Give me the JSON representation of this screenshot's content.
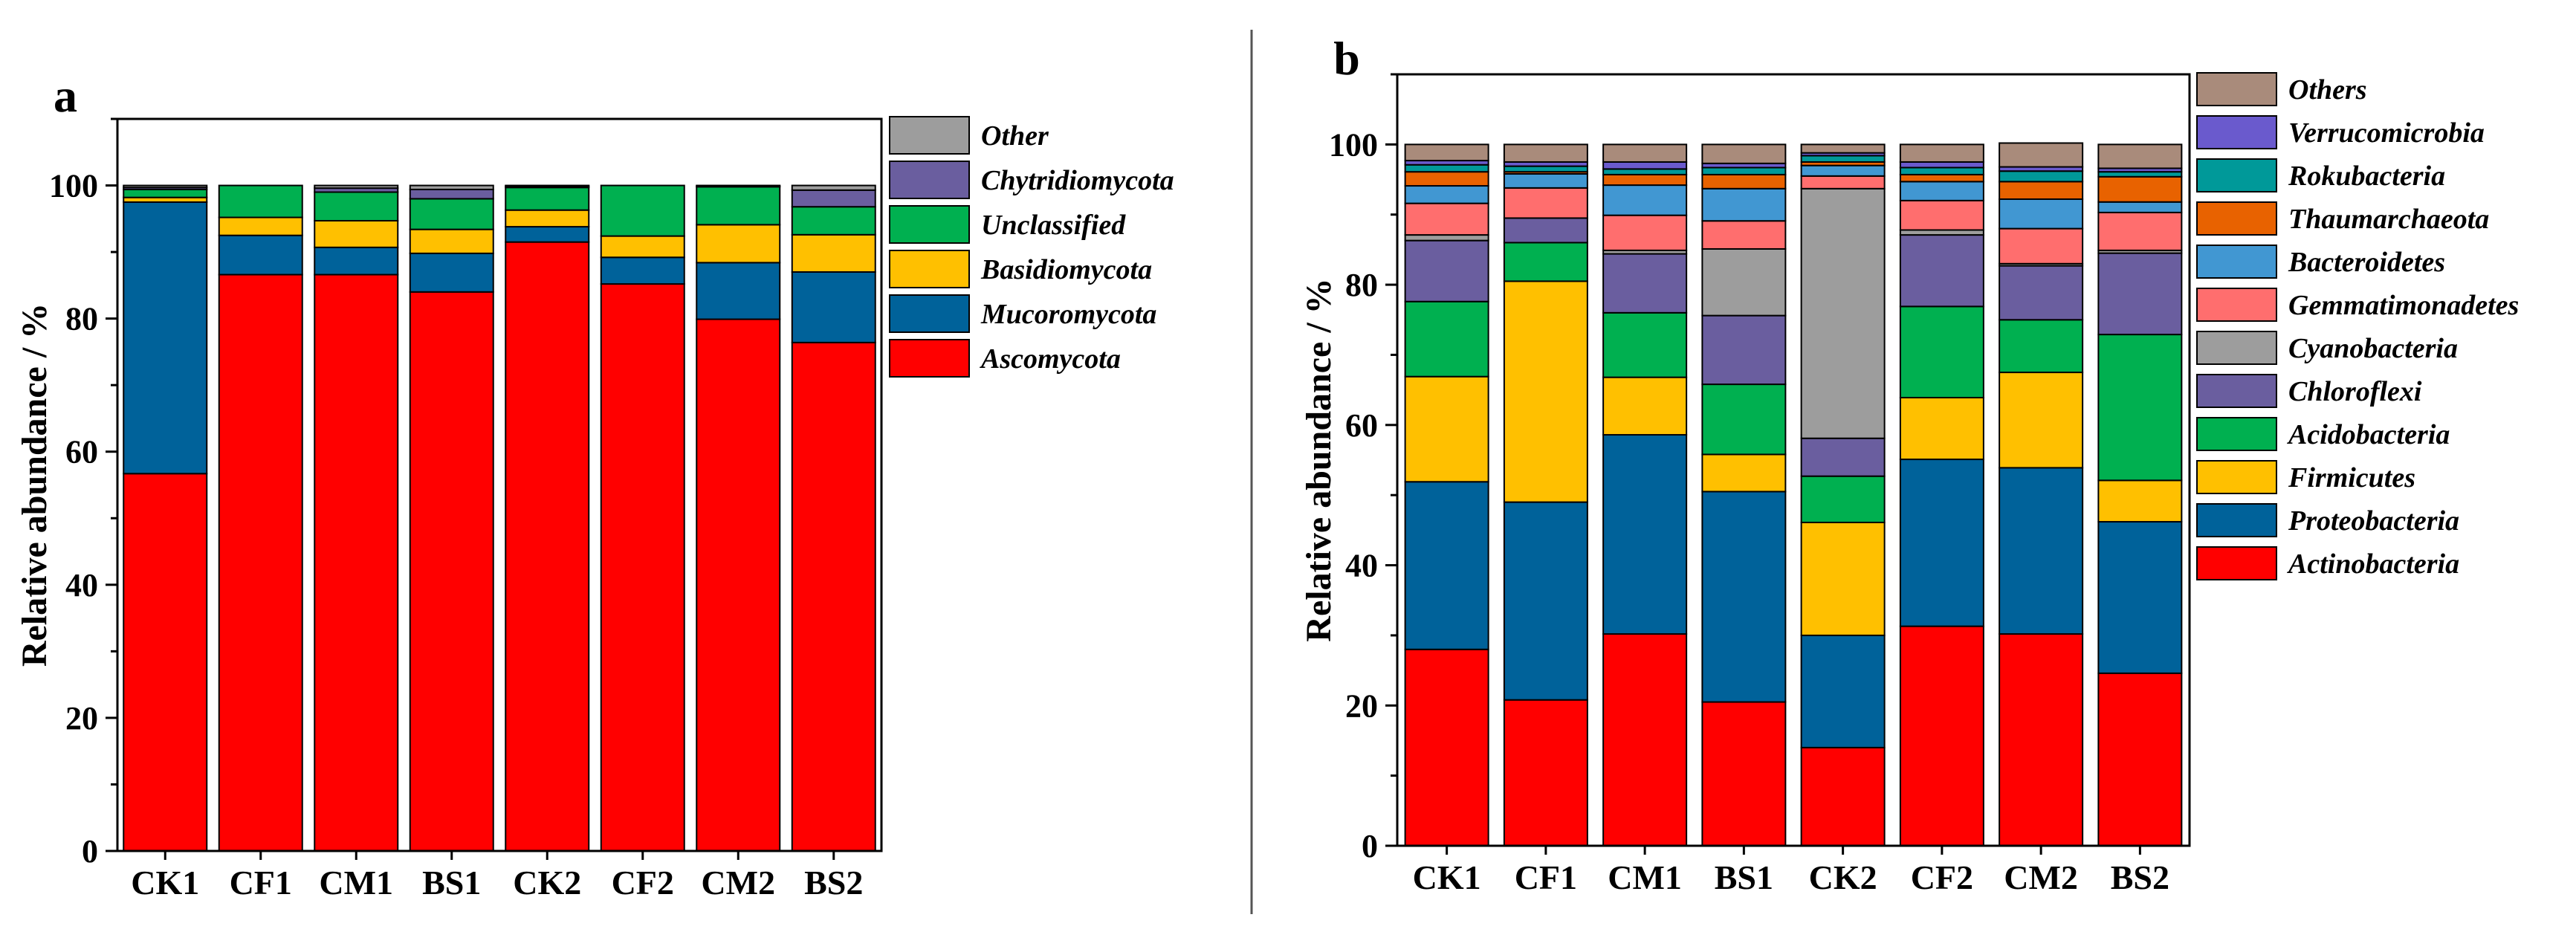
{
  "chart_data": [
    {
      "panel": "a",
      "type": "bar",
      "stacked": true,
      "title": "",
      "xlabel": "",
      "ylabel": "Relative abundance / %",
      "ylim": [
        0,
        110
      ],
      "yticks": [
        0,
        20,
        40,
        60,
        80,
        100
      ],
      "categories": [
        "CK1",
        "CF1",
        "CM1",
        "BS1",
        "CK2",
        "CF2",
        "CM2",
        "BS2"
      ],
      "series": [
        {
          "name": "Ascomycota",
          "color": "#ff0000",
          "values": [
            56.7,
            86.6,
            86.6,
            84.0,
            91.5,
            85.2,
            79.9,
            76.4
          ]
        },
        {
          "name": "Mucoromycota",
          "color": "#00629a",
          "values": [
            40.8,
            5.9,
            4.1,
            5.8,
            2.3,
            4.0,
            8.5,
            10.6
          ]
        },
        {
          "name": "Basidiomycota",
          "color": "#ffc000",
          "values": [
            0.7,
            2.7,
            4.0,
            3.6,
            2.5,
            3.2,
            5.7,
            5.6
          ]
        },
        {
          "name": "Unclassified",
          "color": "#00b050",
          "values": [
            1.2,
            4.8,
            4.3,
            4.6,
            3.4,
            7.6,
            5.7,
            4.2
          ]
        },
        {
          "name": "Chytridiomycota",
          "color": "#6a5e9f",
          "values": [
            0.3,
            0.0,
            0.6,
            1.4,
            0.2,
            0.0,
            0.1,
            2.5
          ]
        },
        {
          "name": "Other",
          "color": "#9d9d9d",
          "values": [
            0.3,
            0.0,
            0.4,
            0.6,
            0.1,
            0.0,
            0.1,
            0.7
          ]
        }
      ],
      "legend": {
        "placement": "right",
        "order": [
          "Other",
          "Chytridiomycota",
          "Unclassified",
          "Basidiomycota",
          "Mucoromycota",
          "Ascomycota"
        ]
      }
    },
    {
      "panel": "b",
      "type": "bar",
      "stacked": true,
      "title": "",
      "xlabel": "",
      "ylabel": "Relative abundance / %",
      "ylim": [
        0,
        110
      ],
      "yticks": [
        0,
        20,
        40,
        60,
        80,
        100
      ],
      "categories": [
        "CK1",
        "CF1",
        "CM1",
        "BS1",
        "CK2",
        "CF2",
        "CM2",
        "BS2"
      ],
      "series": [
        {
          "name": "Actinobacteria",
          "color": "#ff0000",
          "values": [
            28.0,
            20.8,
            30.2,
            20.5,
            14.0,
            31.3,
            30.2,
            24.6
          ]
        },
        {
          "name": "Proteobacteria",
          "color": "#00629a",
          "values": [
            23.9,
            28.2,
            28.4,
            30.0,
            16.0,
            23.8,
            23.7,
            21.6
          ]
        },
        {
          "name": "Firmicutes",
          "color": "#ffc000",
          "values": [
            15.0,
            31.5,
            8.2,
            5.3,
            16.1,
            8.8,
            13.6,
            5.9
          ]
        },
        {
          "name": "Acidobacteria",
          "color": "#00b050",
          "values": [
            10.7,
            5.5,
            9.2,
            10.0,
            6.6,
            13.0,
            7.5,
            20.8
          ]
        },
        {
          "name": "Chloroflexi",
          "color": "#6a5e9f",
          "values": [
            8.7,
            3.5,
            8.4,
            9.8,
            5.4,
            10.2,
            7.7,
            11.6
          ]
        },
        {
          "name": "Cyanobacteria",
          "color": "#9d9d9d",
          "values": [
            0.8,
            0.0,
            0.5,
            9.5,
            35.6,
            0.7,
            0.3,
            0.4
          ]
        },
        {
          "name": "Gemmatimonadetes",
          "color": "#ff6e6e",
          "values": [
            4.5,
            4.3,
            5.0,
            4.0,
            1.8,
            4.2,
            5.0,
            5.4
          ]
        },
        {
          "name": "Bacteroidetes",
          "color": "#4197d2",
          "values": [
            2.5,
            2.0,
            4.3,
            4.6,
            1.5,
            2.7,
            4.2,
            1.5
          ]
        },
        {
          "name": "Thaumarchaeota",
          "color": "#e86200",
          "values": [
            2.0,
            0.3,
            1.5,
            2.0,
            0.5,
            1.0,
            2.5,
            3.6
          ]
        },
        {
          "name": "Rokubacteria",
          "color": "#009999",
          "values": [
            1.0,
            0.8,
            0.8,
            1.0,
            0.9,
            1.0,
            1.5,
            0.7
          ]
        },
        {
          "name": "Verrucomicrobia",
          "color": "#6a5acd",
          "values": [
            0.6,
            0.6,
            1.0,
            0.6,
            0.4,
            0.8,
            0.6,
            0.5
          ]
        },
        {
          "name": "Others",
          "color": "#a98b7b",
          "values": [
            2.3,
            2.5,
            2.5,
            2.7,
            1.2,
            2.5,
            3.4,
            3.4
          ]
        }
      ],
      "legend": {
        "placement": "right",
        "order": [
          "Others",
          "Verrucomicrobia",
          "Rokubacteria",
          "Thaumarchaeota",
          "Bacteroidetes",
          "Gemmatimonadetes",
          "Cyanobacteria",
          "Chloroflexi",
          "Acidobacteria",
          "Firmicutes",
          "Proteobacteria",
          "Actinobacteria"
        ]
      }
    }
  ]
}
